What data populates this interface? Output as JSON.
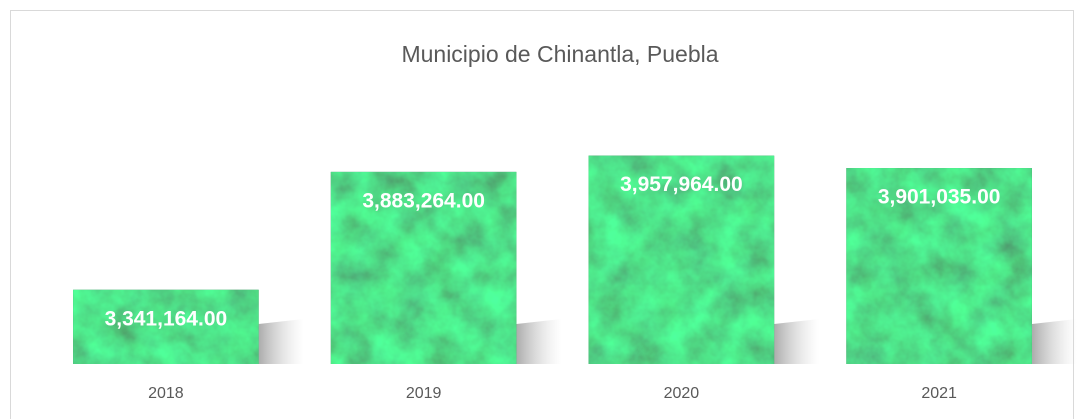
{
  "chart_data": {
    "type": "bar",
    "title": "Municipio de Chinantla, Puebla",
    "categories": [
      "2018",
      "2019",
      "2020",
      "2021"
    ],
    "values": [
      3341164,
      3883264,
      3957964,
      3901035
    ],
    "value_labels": [
      "3,341,164.00",
      "3,883,264.00",
      "3,957,964.00",
      "3,901,035.00"
    ],
    "color": "#1f5e3c",
    "ylim": [
      3000000,
      4200000
    ]
  }
}
